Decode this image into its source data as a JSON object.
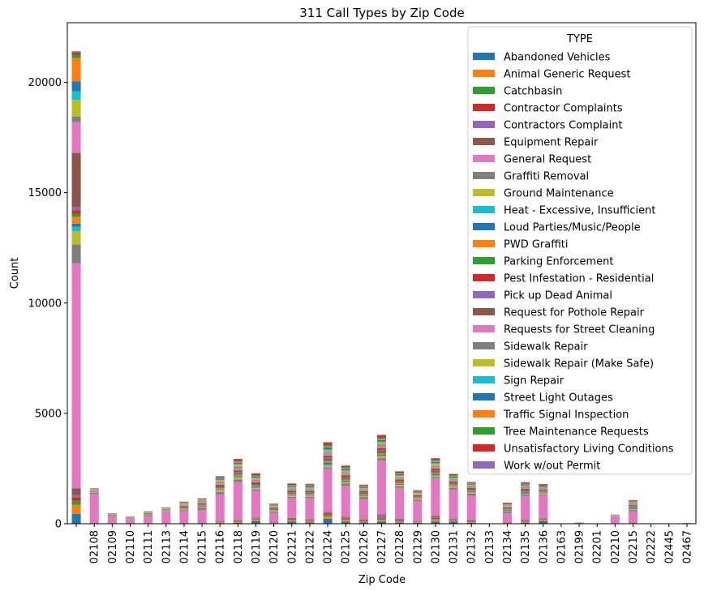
{
  "chart_data": {
    "type": "bar",
    "stacked": true,
    "title": "311 Call Types by Zip Code",
    "xlabel": "Zip Code",
    "ylabel": "Count",
    "ylim": [
      0,
      22700
    ],
    "yticks": [
      0,
      5000,
      10000,
      15000,
      20000
    ],
    "legend_title": "TYPE",
    "legend_position": "top-right",
    "grid": false,
    "categories": [
      "",
      "02108",
      "02109",
      "02110",
      "02111",
      "02113",
      "02114",
      "02115",
      "02116",
      "02118",
      "02119",
      "02120",
      "02121",
      "02122",
      "02124",
      "02125",
      "02126",
      "02127",
      "02128",
      "02129",
      "02130",
      "02131",
      "02132",
      "02133",
      "02134",
      "02135",
      "02136",
      "02163",
      "02199",
      "02201",
      "02210",
      "02215",
      "02222",
      "02445",
      "02467"
    ],
    "series": [
      {
        "name": "Abandoned Vehicles",
        "color": "#1f77b4",
        "values": [
          450,
          0,
          0,
          0,
          0,
          0,
          10,
          15,
          30,
          40,
          120,
          20,
          100,
          60,
          230,
          100,
          60,
          100,
          50,
          40,
          100,
          90,
          40,
          0,
          20,
          50,
          120,
          0,
          0,
          0,
          0,
          10,
          0,
          0,
          0
        ]
      },
      {
        "name": "Animal Generic Request",
        "color": "#ff7f0e",
        "values": [
          400,
          10,
          5,
          0,
          5,
          5,
          10,
          10,
          30,
          50,
          70,
          20,
          60,
          50,
          120,
          80,
          50,
          80,
          50,
          30,
          90,
          60,
          40,
          0,
          15,
          40,
          60,
          0,
          0,
          0,
          5,
          20,
          0,
          0,
          0
        ]
      },
      {
        "name": "Catchbasin",
        "color": "#2ca02c",
        "values": [
          200,
          10,
          10,
          5,
          5,
          5,
          10,
          10,
          20,
          30,
          40,
          20,
          40,
          30,
          70,
          50,
          40,
          50,
          30,
          20,
          50,
          40,
          30,
          0,
          10,
          20,
          30,
          0,
          0,
          0,
          5,
          10,
          0,
          0,
          0
        ]
      },
      {
        "name": "Contractor Complaints",
        "color": "#d62728",
        "values": [
          150,
          10,
          5,
          5,
          5,
          5,
          10,
          10,
          20,
          20,
          20,
          10,
          20,
          20,
          40,
          30,
          20,
          30,
          20,
          10,
          30,
          20,
          20,
          0,
          10,
          15,
          20,
          0,
          0,
          0,
          5,
          10,
          0,
          0,
          0
        ]
      },
      {
        "name": "Contractors Complaint",
        "color": "#9467bd",
        "values": [
          100,
          10,
          5,
          0,
          5,
          5,
          10,
          10,
          20,
          30,
          20,
          10,
          20,
          20,
          40,
          30,
          20,
          120,
          50,
          20,
          40,
          20,
          20,
          0,
          10,
          20,
          20,
          0,
          0,
          0,
          5,
          10,
          0,
          0,
          0
        ]
      },
      {
        "name": "Equipment Repair",
        "color": "#8c564b",
        "values": [
          300,
          10,
          5,
          5,
          5,
          5,
          10,
          10,
          20,
          20,
          20,
          10,
          20,
          30,
          40,
          30,
          20,
          40,
          20,
          10,
          40,
          20,
          20,
          0,
          10,
          20,
          20,
          0,
          0,
          0,
          5,
          10,
          0,
          0,
          0
        ]
      },
      {
        "name": "General Request",
        "color": "#e377c2",
        "values": [
          10200,
          1300,
          250,
          200,
          300,
          500,
          500,
          550,
          1200,
          1700,
          1200,
          400,
          900,
          950,
          1950,
          1400,
          900,
          2450,
          1400,
          900,
          1700,
          1300,
          1100,
          0,
          400,
          1100,
          1000,
          0,
          60,
          0,
          300,
          500,
          0,
          0,
          20
        ]
      },
      {
        "name": "Graffiti Removal",
        "color": "#7f7f7f",
        "values": [
          850,
          50,
          30,
          20,
          40,
          30,
          60,
          100,
          100,
          120,
          60,
          60,
          60,
          60,
          60,
          100,
          100,
          100,
          80,
          60,
          60,
          80,
          100,
          0,
          60,
          60,
          40,
          0,
          0,
          0,
          10,
          60,
          0,
          0,
          10
        ]
      },
      {
        "name": "Ground Maintenance",
        "color": "#bcbd22",
        "values": [
          600,
          20,
          20,
          10,
          20,
          20,
          40,
          40,
          80,
          80,
          60,
          30,
          40,
          40,
          80,
          60,
          40,
          80,
          60,
          40,
          60,
          50,
          40,
          0,
          20,
          30,
          40,
          0,
          0,
          0,
          5,
          30,
          0,
          0,
          0
        ]
      },
      {
        "name": "Heat - Excessive, Insufficient",
        "color": "#17becf",
        "values": [
          200,
          10,
          5,
          5,
          10,
          5,
          10,
          15,
          20,
          30,
          30,
          10,
          20,
          20,
          60,
          30,
          20,
          30,
          20,
          10,
          30,
          20,
          20,
          0,
          20,
          20,
          20,
          0,
          0,
          0,
          5,
          20,
          0,
          0,
          0
        ]
      },
      {
        "name": "Loud Parties/Music/People",
        "color": "#1f77b4",
        "values": [
          150,
          10,
          5,
          5,
          10,
          10,
          10,
          20,
          30,
          40,
          40,
          10,
          30,
          30,
          80,
          40,
          20,
          40,
          20,
          10,
          40,
          30,
          20,
          0,
          40,
          40,
          20,
          0,
          0,
          0,
          0,
          40,
          0,
          0,
          0
        ]
      },
      {
        "name": "PWD Graffiti",
        "color": "#ff7f0e",
        "values": [
          300,
          10,
          10,
          5,
          10,
          10,
          20,
          30,
          40,
          50,
          40,
          20,
          40,
          40,
          60,
          50,
          30,
          60,
          50,
          30,
          50,
          40,
          30,
          0,
          20,
          30,
          30,
          0,
          0,
          0,
          5,
          20,
          0,
          0,
          0
        ]
      },
      {
        "name": "Parking Enforcement",
        "color": "#2ca02c",
        "values": [
          150,
          10,
          5,
          5,
          10,
          10,
          20,
          20,
          30,
          40,
          30,
          20,
          30,
          30,
          60,
          40,
          30,
          50,
          30,
          20,
          40,
          30,
          20,
          0,
          20,
          30,
          20,
          0,
          0,
          0,
          5,
          20,
          0,
          0,
          0
        ]
      },
      {
        "name": "Pest Infestation - Residential",
        "color": "#d62728",
        "values": [
          150,
          10,
          5,
          5,
          10,
          5,
          20,
          20,
          30,
          40,
          30,
          20,
          30,
          30,
          60,
          40,
          30,
          60,
          30,
          20,
          40,
          30,
          20,
          0,
          20,
          30,
          20,
          0,
          0,
          0,
          5,
          20,
          0,
          0,
          0
        ]
      },
      {
        "name": "Pick up Dead Animal",
        "color": "#9467bd",
        "values": [
          150,
          10,
          5,
          5,
          5,
          5,
          10,
          10,
          20,
          30,
          20,
          10,
          20,
          20,
          40,
          30,
          20,
          40,
          20,
          10,
          30,
          20,
          20,
          0,
          10,
          20,
          20,
          0,
          0,
          0,
          5,
          10,
          0,
          0,
          0
        ]
      },
      {
        "name": "Request for Pothole Repair",
        "color": "#8c564b",
        "values": [
          2450,
          20,
          20,
          10,
          20,
          20,
          40,
          60,
          80,
          100,
          80,
          50,
          70,
          60,
          100,
          90,
          70,
          100,
          80,
          60,
          100,
          70,
          80,
          0,
          50,
          60,
          60,
          0,
          0,
          0,
          5,
          50,
          0,
          0,
          0
        ]
      },
      {
        "name": "Requests for Street Cleaning",
        "color": "#e377c2",
        "values": [
          1400,
          20,
          20,
          10,
          20,
          20,
          40,
          60,
          80,
          100,
          80,
          30,
          50,
          50,
          80,
          70,
          40,
          100,
          60,
          40,
          80,
          50,
          40,
          0,
          30,
          50,
          40,
          0,
          0,
          0,
          5,
          40,
          0,
          0,
          0
        ]
      },
      {
        "name": "Sidewalk Repair",
        "color": "#7f7f7f",
        "values": [
          250,
          10,
          10,
          5,
          10,
          10,
          20,
          20,
          40,
          50,
          30,
          20,
          30,
          30,
          50,
          40,
          30,
          50,
          30,
          20,
          40,
          30,
          30,
          0,
          20,
          30,
          20,
          0,
          0,
          0,
          5,
          20,
          0,
          0,
          0
        ]
      },
      {
        "name": "Sidewalk Repair (Make Safe)",
        "color": "#bcbd22",
        "values": [
          750,
          20,
          20,
          10,
          20,
          20,
          40,
          40,
          80,
          100,
          70,
          30,
          50,
          50,
          90,
          80,
          50,
          100,
          70,
          40,
          90,
          60,
          50,
          0,
          30,
          40,
          40,
          0,
          0,
          0,
          5,
          40,
          0,
          0,
          0
        ]
      },
      {
        "name": "Sign Repair",
        "color": "#17becf",
        "values": [
          400,
          10,
          5,
          5,
          10,
          10,
          20,
          20,
          30,
          40,
          30,
          20,
          30,
          30,
          60,
          40,
          30,
          50,
          30,
          20,
          40,
          30,
          20,
          0,
          20,
          30,
          20,
          0,
          0,
          0,
          5,
          20,
          0,
          0,
          0
        ]
      },
      {
        "name": "Street Light Outages",
        "color": "#1f77b4",
        "values": [
          450,
          10,
          10,
          5,
          10,
          10,
          20,
          20,
          40,
          50,
          40,
          20,
          40,
          40,
          80,
          50,
          30,
          60,
          40,
          20,
          50,
          40,
          30,
          0,
          20,
          30,
          30,
          0,
          0,
          0,
          5,
          20,
          0,
          0,
          0
        ]
      },
      {
        "name": "Traffic Signal Inspection",
        "color": "#ff7f0e",
        "values": [
          1050,
          10,
          5,
          5,
          10,
          10,
          20,
          20,
          30,
          40,
          30,
          20,
          30,
          30,
          50,
          40,
          30,
          50,
          30,
          20,
          40,
          30,
          20,
          0,
          20,
          20,
          20,
          0,
          0,
          0,
          5,
          20,
          0,
          0,
          0
        ]
      },
      {
        "name": "Tree Maintenance Requests",
        "color": "#2ca02c",
        "values": [
          150,
          10,
          10,
          5,
          10,
          10,
          20,
          20,
          30,
          40,
          30,
          20,
          30,
          30,
          60,
          40,
          30,
          60,
          40,
          30,
          50,
          40,
          30,
          0,
          20,
          30,
          30,
          0,
          0,
          0,
          5,
          20,
          0,
          0,
          0
        ]
      },
      {
        "name": "Unsatisfactory Living Conditions",
        "color": "#d62728",
        "values": [
          100,
          10,
          5,
          5,
          10,
          10,
          20,
          20,
          40,
          80,
          80,
          20,
          50,
          40,
          100,
          60,
          40,
          100,
          50,
          30,
          60,
          40,
          30,
          0,
          50,
          50,
          40,
          0,
          0,
          0,
          5,
          40,
          0,
          0,
          0
        ]
      },
      {
        "name": "Work w/out Permit",
        "color": "#9467bd",
        "values": [
          60,
          10,
          5,
          0,
          5,
          5,
          10,
          10,
          20,
          20,
          20,
          10,
          20,
          20,
          40,
          20,
          20,
          30,
          20,
          10,
          30,
          20,
          20,
          0,
          10,
          20,
          20,
          0,
          0,
          0,
          5,
          10,
          0,
          0,
          0
        ]
      }
    ]
  }
}
